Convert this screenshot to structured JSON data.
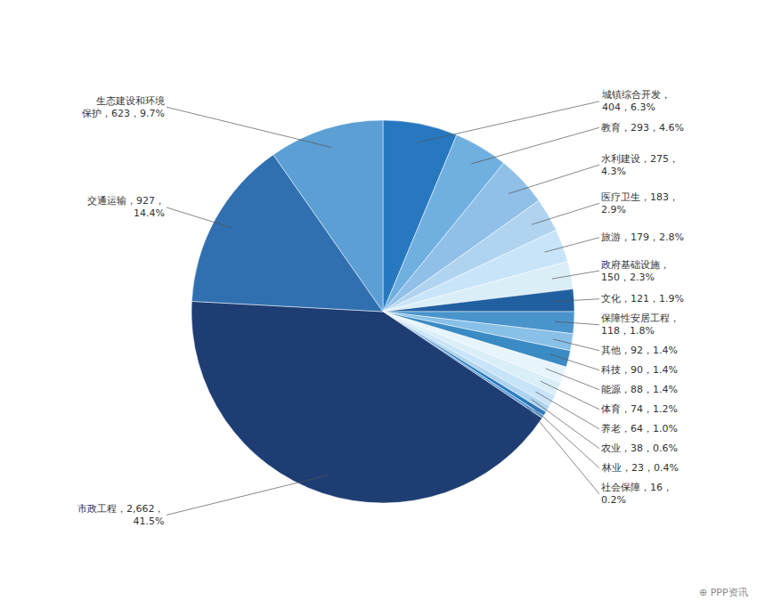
{
  "chart_data": {
    "type": "pie",
    "categories": [
      "城镇综合开发",
      "教育",
      "水利建设",
      "医疗卫生",
      "旅游",
      "政府基础设施",
      "文化",
      "保障性安居工程",
      "其他",
      "科技",
      "能源",
      "体育",
      "养老",
      "农业",
      "林业",
      "社会保障",
      "市政工程",
      "交通运输",
      "生态建设和环境保护"
    ],
    "values": [
      404,
      293,
      275,
      183,
      179,
      150,
      121,
      118,
      92,
      90,
      88,
      74,
      64,
      38,
      23,
      16,
      2662,
      927,
      623
    ],
    "value_labels": [
      "城镇综合开发，\n404，6.3%",
      "教育，293，4.6%",
      "水利建设，275，\n4.3%",
      "医疗卫生，183，\n2.9%",
      "旅游，179，2.8%",
      "政府基础设施，\n150，2.3%",
      "文化，121，1.9%",
      "保障性安居工程，\n118，1.8%",
      "其他，92，1.4%",
      "科技，90，1.4%",
      "能源，88，1.4%",
      "体育，74，1.2%",
      "养老，64，1.0%",
      "农业，38，0.6%",
      "林业，23，0.4%",
      "社会保障，16，\n0.2%",
      "市政工程，2,662，\n41.5%",
      "交通运输，927，\n14.4%",
      "生态建设和环境\n保护，623，9.7%"
    ],
    "colors": [
      "#2878c0",
      "#70b0e0",
      "#90c0e8",
      "#b0d4f0",
      "#c8e4f8",
      "#daeef8",
      "#2060a0",
      "#4a94cc",
      "#88c0e8",
      "#3a8ac4",
      "#e8f4fc",
      "#daeef8",
      "#c8e4f8",
      "#aed4f0",
      "#2878c0",
      "#5b9bd5",
      "#1e3d73",
      "#3070b0",
      "#5b9fd4"
    ],
    "annotations": [
      "⊕ PPP资讯"
    ]
  }
}
